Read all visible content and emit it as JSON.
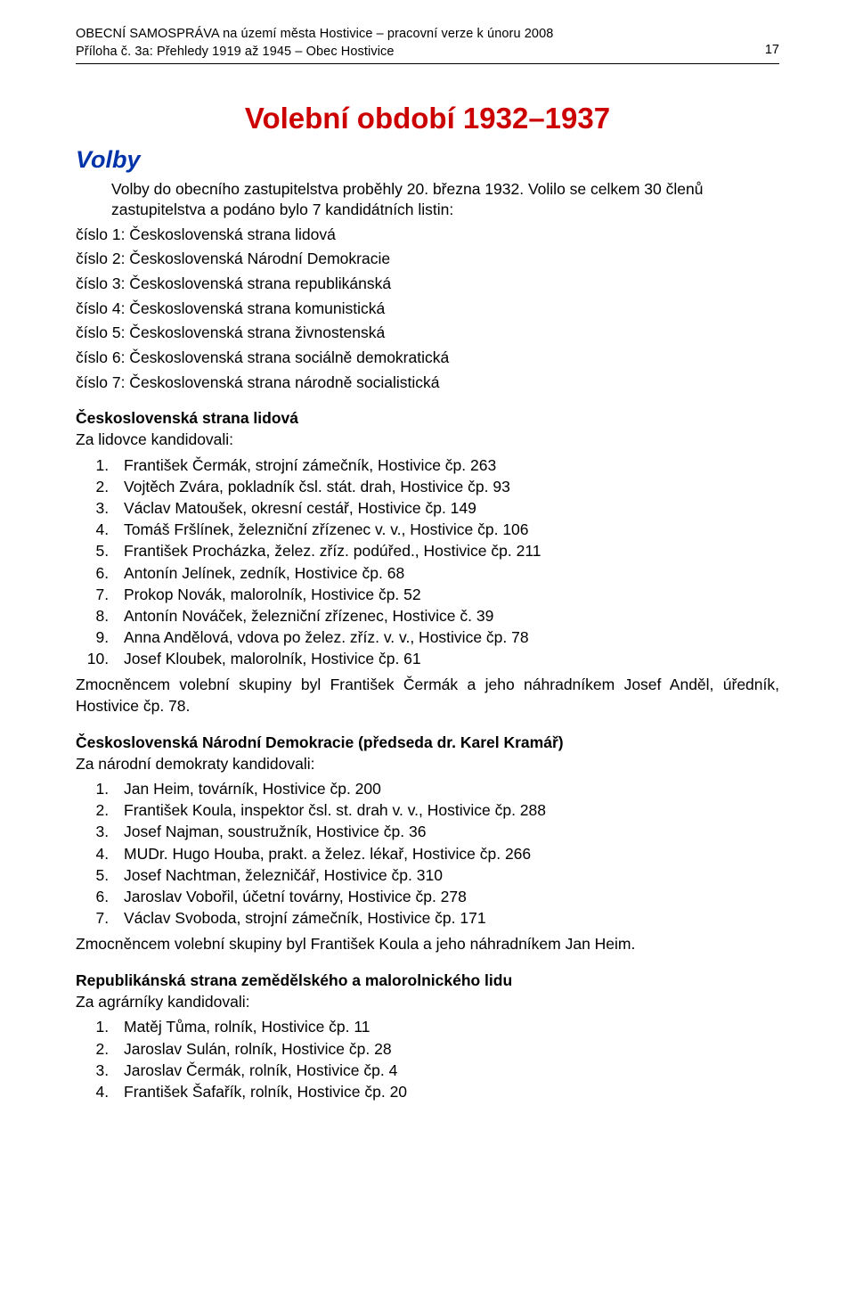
{
  "colors": {
    "title_red": "#cc0000",
    "section_blue": "#0033aa",
    "text": "#000000",
    "background": "#ffffff"
  },
  "fonts": {
    "body_family": "Verdana, Geneva, sans-serif",
    "body_size_pt": 12,
    "title_size_pt": 22,
    "section_size_pt": 18
  },
  "header": {
    "line1": "OBECNÍ SAMOSPRÁVA na území města Hostivice – pracovní verze k únoru 2008",
    "line2": "Příloha č. 3a: Přehledy 1919 až 1945 – Obec Hostivice",
    "page_number": "17"
  },
  "title": "Volební období 1932–1937",
  "section": "Volby",
  "intro": "Volby do obecního zastupitelstva proběhly 20. března 1932. Volilo se celkem 30 členů zastupitelstva a podáno bylo 7 kandidátních listin:",
  "lists_label_lines": [
    "číslo 1: Československá strana lidová",
    "číslo 2: Československá Národní Demokracie",
    "číslo 3: Československá strana republikánská",
    "číslo 4: Československá strana komunistická",
    "číslo 5: Československá strana živnostenská",
    "číslo 6: Československá strana sociálně demokratická",
    "číslo 7: Československá strana národně socialistická"
  ],
  "party1": {
    "heading": "Československá strana lidová",
    "sub": "Za lidovce kandidovali:",
    "items": [
      "František Čermák, strojní zámečník, Hostivice čp. 263",
      "Vojtěch Zvára, pokladník čsl. stát. drah, Hostivice čp. 93",
      "Václav Matoušek, okresní cestář, Hostivice čp. 149",
      "Tomáš Fršlínek, železniční zřízenec v. v., Hostivice čp. 106",
      "František Procházka, želez. zříz. podúřed., Hostivice čp. 211",
      "Antonín Jelínek, zedník, Hostivice čp. 68",
      "Prokop Novák, malorolník, Hostivice čp. 52",
      "Antonín Nováček, železniční zřízenec, Hostivice č. 39",
      "Anna Andělová, vdova po želez. zříz. v. v., Hostivice čp. 78",
      "Josef Kloubek, malorolník, Hostivice čp. 61"
    ],
    "note": "Zmocněncem volební skupiny byl František Čermák a jeho náhradníkem Josef Anděl, úředník, Hostivice čp. 78."
  },
  "party2": {
    "heading": "Československá Národní Demokracie (předseda dr. Karel Kramář)",
    "sub": "Za národní demokraty kandidovali:",
    "items": [
      "Jan Heim, továrník, Hostivice čp. 200",
      "František Koula, inspektor čsl. st. drah v. v., Hostivice čp. 288",
      "Josef Najman, soustružník, Hostivice čp. 36",
      "MUDr. Hugo Houba, prakt. a želez. lékař, Hostivice čp. 266",
      "Josef Nachtman, železničář, Hostivice čp. 310",
      "Jaroslav Vobořil, účetní továrny, Hostivice čp. 278",
      "Václav Svoboda, strojní zámečník, Hostivice čp. 171"
    ],
    "note": "Zmocněncem volební skupiny byl František Koula a jeho náhradníkem Jan Heim."
  },
  "party3": {
    "heading": "Republikánská strana zemědělského a malorolnického lidu",
    "sub": "Za agrárníky kandidovali:",
    "items": [
      "Matěj Tůma, rolník, Hostivice čp. 11",
      "Jaroslav Sulán, rolník, Hostivice čp. 28",
      "Jaroslav Čermák, rolník, Hostivice čp. 4",
      "František Šafařík, rolník, Hostivice čp. 20"
    ]
  }
}
